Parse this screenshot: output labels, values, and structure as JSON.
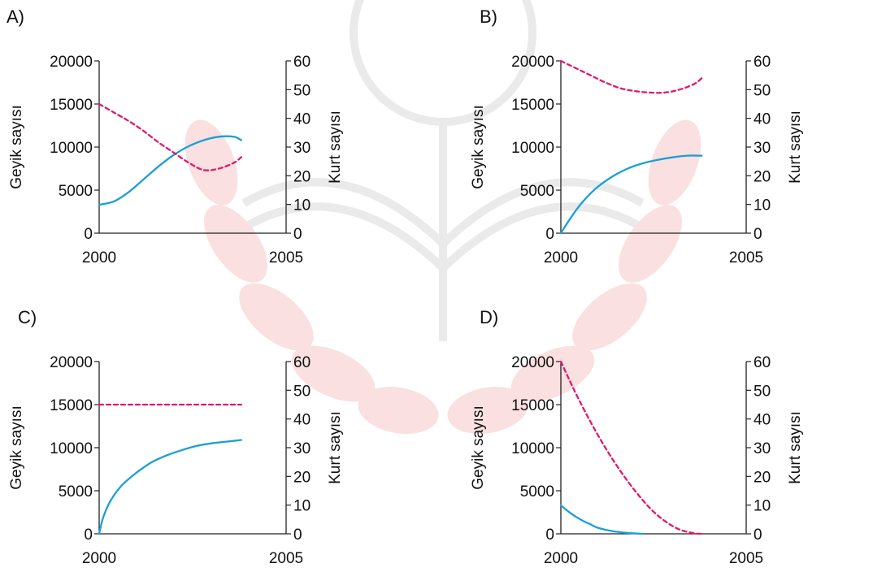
{
  "colors": {
    "deer": "#1a9fd8",
    "wolf": "#e0196e",
    "axis": "#222222",
    "watermark": "#f4cccc"
  },
  "chart_data": [
    {
      "panel": "A)",
      "type": "line",
      "xlabel": "",
      "ylabel_left": "Geyik sayısı",
      "ylabel_right": "Kurt sayısı",
      "xlim": [
        2000,
        2005
      ],
      "xticks": [
        "2000",
        "2005"
      ],
      "ylim_left": [
        0,
        20000
      ],
      "yticks_left": [
        "0",
        "5000",
        "10000",
        "15000",
        "20000"
      ],
      "ylim_right": [
        0,
        60
      ],
      "yticks_right": [
        "0",
        "10",
        "20",
        "30",
        "40",
        "50",
        "60"
      ],
      "series": [
        {
          "axis": "left",
          "style": "solid",
          "color": "#1a9fd8",
          "x": [
            2000,
            2000.4,
            2000.8,
            2001.2,
            2001.6,
            2002,
            2002.4,
            2002.8,
            2003.2,
            2003.6,
            2003.8
          ],
          "values": [
            3300,
            3700,
            4800,
            6300,
            7800,
            9100,
            10100,
            10800,
            11200,
            11200,
            10800
          ]
        },
        {
          "axis": "right",
          "style": "dashed",
          "color": "#e0196e",
          "x": [
            2000,
            2000.4,
            2000.8,
            2001.2,
            2001.6,
            2002,
            2002.4,
            2002.8,
            2003.2,
            2003.6,
            2003.8
          ],
          "values": [
            45,
            42,
            39,
            35.5,
            31.5,
            28,
            24.5,
            22,
            22.5,
            24.5,
            26.5
          ]
        }
      ]
    },
    {
      "panel": "B)",
      "type": "line",
      "xlabel": "",
      "ylabel_left": "Geyik sayısı",
      "ylabel_right": "Kurt sayısı",
      "xlim": [
        2000,
        2005
      ],
      "xticks": [
        "2000",
        "2005"
      ],
      "ylim_left": [
        0,
        20000
      ],
      "yticks_left": [
        "0",
        "5000",
        "10000",
        "15000",
        "20000"
      ],
      "ylim_right": [
        0,
        60
      ],
      "yticks_right": [
        "0",
        "10",
        "20",
        "30",
        "40",
        "50",
        "60"
      ],
      "series": [
        {
          "axis": "left",
          "style": "solid",
          "color": "#1a9fd8",
          "x": [
            2000,
            2000.3,
            2000.6,
            2001,
            2001.4,
            2001.8,
            2002.2,
            2002.6,
            2003,
            2003.4,
            2003.8
          ],
          "values": [
            0,
            2000,
            3700,
            5400,
            6600,
            7500,
            8100,
            8500,
            8800,
            9000,
            9000
          ]
        },
        {
          "axis": "right",
          "style": "dashed",
          "color": "#e0196e",
          "x": [
            2000,
            2000.4,
            2000.8,
            2001.2,
            2001.6,
            2002,
            2002.4,
            2002.8,
            2003.2,
            2003.6,
            2003.8
          ],
          "values": [
            60,
            57.5,
            55,
            52.5,
            50.5,
            49.5,
            49,
            49,
            50,
            52,
            54
          ]
        }
      ]
    },
    {
      "panel": "C)",
      "type": "line",
      "xlabel": "",
      "ylabel_left": "Geyik sayısı",
      "ylabel_right": "Kurt sayısı",
      "xlim": [
        2000,
        2005
      ],
      "xticks": [
        "2000",
        "2005"
      ],
      "ylim_left": [
        0,
        20000
      ],
      "yticks_left": [
        "0",
        "5000",
        "10000",
        "15000",
        "20000"
      ],
      "ylim_right": [
        0,
        60
      ],
      "yticks_right": [
        "0",
        "10",
        "20",
        "30",
        "40",
        "50",
        "60"
      ],
      "series": [
        {
          "axis": "left",
          "style": "solid",
          "color": "#1a9fd8",
          "x": [
            2000,
            2000.1,
            2000.3,
            2000.6,
            2001,
            2001.4,
            2001.8,
            2002.2,
            2002.6,
            2003,
            2003.4,
            2003.8
          ],
          "values": [
            0,
            1800,
            3800,
            5600,
            7100,
            8300,
            9100,
            9700,
            10200,
            10500,
            10700,
            10900
          ]
        },
        {
          "axis": "right",
          "style": "dashed",
          "color": "#e0196e",
          "x": [
            2000,
            2003.8
          ],
          "values": [
            45,
            45
          ]
        }
      ]
    },
    {
      "panel": "D)",
      "type": "line",
      "xlabel": "",
      "ylabel_left": "Geyik sayısı",
      "ylabel_right": "Kurt sayısı",
      "xlim": [
        2000,
        2005
      ],
      "xticks": [
        "2000",
        "2005"
      ],
      "ylim_left": [
        0,
        20000
      ],
      "yticks_left": [
        "0",
        "5000",
        "10000",
        "15000",
        "20000"
      ],
      "ylim_right": [
        0,
        60
      ],
      "yticks_right": [
        "0",
        "10",
        "20",
        "30",
        "40",
        "50",
        "60"
      ],
      "series": [
        {
          "axis": "left",
          "style": "solid",
          "color": "#1a9fd8",
          "x": [
            2000,
            2000.2,
            2000.4,
            2000.6,
            2000.8,
            2001,
            2001.4,
            2001.8,
            2002.2
          ],
          "values": [
            3300,
            2600,
            2000,
            1500,
            1100,
            700,
            300,
            100,
            0
          ]
        },
        {
          "axis": "right",
          "style": "dashed",
          "color": "#e0196e",
          "x": [
            2000,
            2000.4,
            2000.8,
            2001.2,
            2001.6,
            2002,
            2002.4,
            2002.8,
            2003.2,
            2003.6,
            2003.8
          ],
          "values": [
            60,
            49,
            39,
            30,
            22,
            15,
            9,
            4.5,
            1.5,
            0.2,
            0
          ]
        }
      ]
    }
  ]
}
